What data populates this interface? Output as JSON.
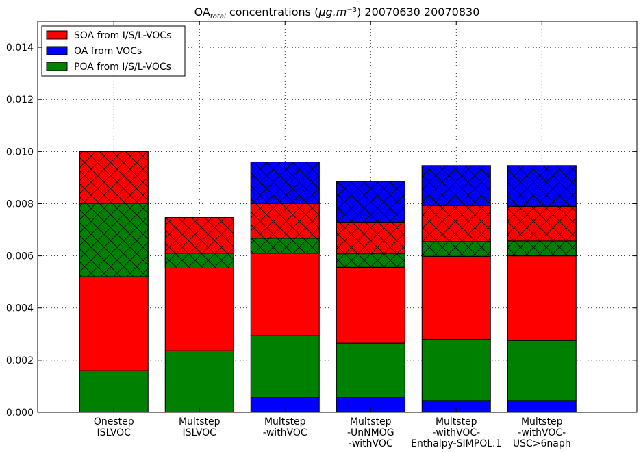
{
  "chart_data": {
    "type": "bar",
    "stacked": true,
    "title_main": "OA",
    "title_sub": "total",
    "title_rest": " concentrations (",
    "title_unit": "μg.m",
    "title_exp": "−3",
    "title_dates": ") 20070630 20070830",
    "xlabel": "",
    "ylabel": "",
    "ylim": [
      0,
      0.015
    ],
    "yticks": [
      "0.000",
      "0.002",
      "0.004",
      "0.006",
      "0.008",
      "0.010",
      "0.012",
      "0.014"
    ],
    "grid": true,
    "legend_position": "top-left",
    "categories": [
      [
        "Onestep",
        "ISLVOC"
      ],
      [
        "Multstep",
        "ISLVOC"
      ],
      [
        "Multstep",
        "-withVOC"
      ],
      [
        "Multstep",
        "-UnNMOG",
        "-withVOC"
      ],
      [
        "Multstep",
        "-withVOC-",
        "Enthalpy-SIMPOL.1"
      ],
      [
        "Multstep",
        "-withVOC-",
        "USC>6naph"
      ]
    ],
    "legend": [
      {
        "label": "SOA from I/S/L-VOCs",
        "color": "#ff0000"
      },
      {
        "label": "OA from VOCs",
        "color": "#0000ff"
      },
      {
        "label": "POA from I/S/L-VOCs",
        "color": "#008000"
      }
    ],
    "series": [
      {
        "name": "OA from VOCs",
        "color": "#0000ff",
        "hatched": false,
        "values": [
          0,
          0,
          0.00058,
          0.00058,
          0.00045,
          0.00045
        ]
      },
      {
        "name": "POA from I/S/L-VOCs",
        "color": "#008000",
        "hatched": false,
        "values": [
          0.0016,
          0.00236,
          0.00236,
          0.00207,
          0.00235,
          0.0023
        ]
      },
      {
        "name": "SOA from I/S/L-VOCs",
        "color": "#ff0000",
        "hatched": false,
        "values": [
          0.0036,
          0.00317,
          0.00316,
          0.00291,
          0.00318,
          0.00325
        ]
      },
      {
        "name": "POA from I/S/L-VOCs (hatched)",
        "color": "#008000",
        "hatched": true,
        "values": [
          0.0028,
          0.00057,
          0.00058,
          0.00052,
          0.00057,
          0.00057
        ]
      },
      {
        "name": "SOA from I/S/L-VOCs (hatched)",
        "color": "#ff0000",
        "hatched": true,
        "values": [
          0.002,
          0.00137,
          0.00132,
          0.00121,
          0.00137,
          0.00133
        ]
      },
      {
        "name": "OA from VOCs (hatched)",
        "color": "#0000ff",
        "hatched": true,
        "values": [
          0,
          0,
          0.0016,
          0.00157,
          0.00154,
          0.00156
        ]
      }
    ]
  }
}
